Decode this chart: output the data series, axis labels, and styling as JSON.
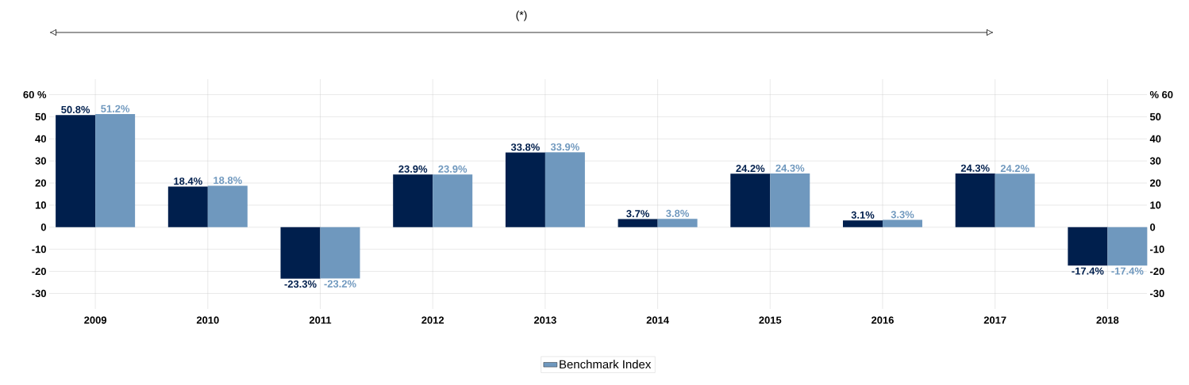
{
  "chart_data": {
    "type": "bar",
    "title": null,
    "annotations": [
      "(*)"
    ],
    "categories": [
      "2009",
      "2010",
      "2011",
      "2012",
      "2013",
      "2014",
      "2015",
      "2016",
      "2017",
      "2018"
    ],
    "series": [
      {
        "color": "#001f4d",
        "values": [
          50.8,
          18.4,
          -23.3,
          23.9,
          33.8,
          3.7,
          24.2,
          3.1,
          24.3,
          -17.4
        ],
        "value_labels": [
          "50.8%",
          "18.4%",
          "-23.3%",
          "23.9%",
          "33.8%",
          "3.7%",
          "24.2%",
          "3.1%",
          "24.3%",
          "-17.4%"
        ]
      },
      {
        "name": "Benchmark Index",
        "color": "#6f98be",
        "values": [
          51.2,
          18.8,
          -23.2,
          23.9,
          33.9,
          3.8,
          24.3,
          3.3,
          24.2,
          -17.4
        ],
        "value_labels": [
          "51.2%",
          "18.8%",
          "-23.2%",
          "23.9%",
          "33.9%",
          "3.8%",
          "24.3%",
          "3.3%",
          "24.2%",
          "-17.4%"
        ]
      }
    ],
    "ylim": [
      -37,
      67
    ],
    "yticks": [
      -30,
      -20,
      -10,
      0,
      10,
      20,
      30,
      40,
      50,
      {
        "value": 60,
        "label": "60 %"
      }
    ],
    "y2lim": [
      -37,
      67
    ],
    "y2ticks": [
      -30,
      -20,
      -10,
      0,
      10,
      20,
      30,
      40,
      50,
      {
        "value": 60,
        "label": "% 60"
      }
    ],
    "grid": true,
    "legend": "bottom"
  }
}
